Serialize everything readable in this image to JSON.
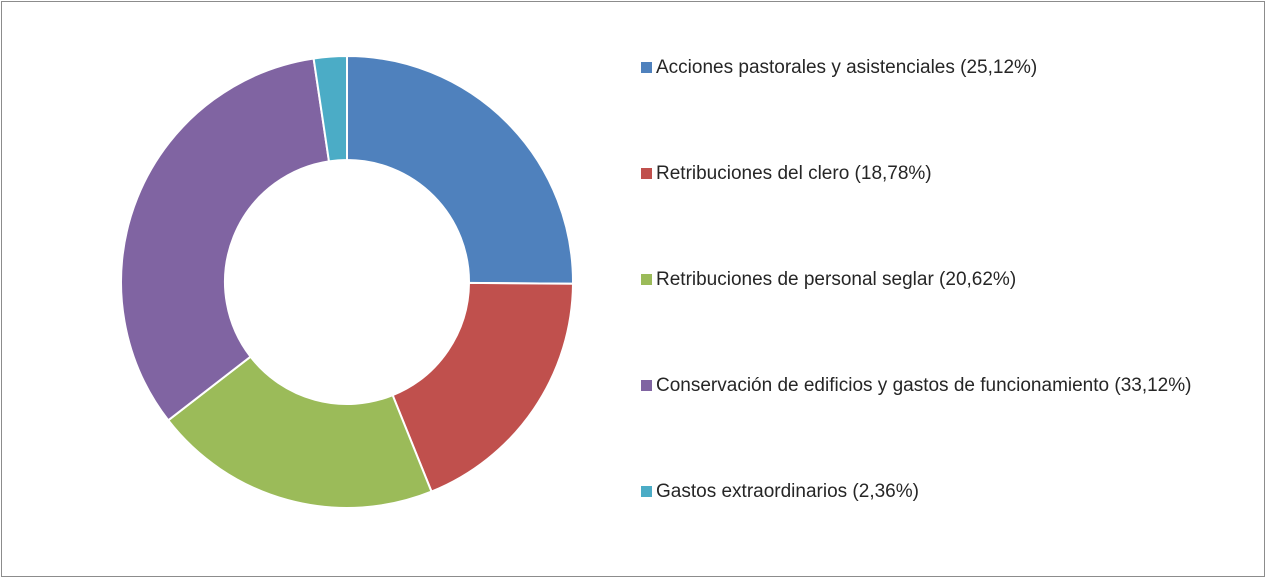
{
  "chart_data": {
    "type": "donut",
    "categories": [
      "Acciones pastorales y asistenciales (25,12%)",
      "Retribuciones del clero (18,78%)",
      "Retribuciones de personal seglar (20,62%)",
      "Conservación de edificios y gastos de funcionamiento (33,12%)",
      "Gastos extraordinarios (2,36%)"
    ],
    "values": [
      25.12,
      18.78,
      20.62,
      33.12,
      2.36
    ],
    "colors": [
      "#4f81bd",
      "#c0504d",
      "#9bbb59",
      "#8064a2",
      "#4bacc6"
    ],
    "legend": "right"
  }
}
